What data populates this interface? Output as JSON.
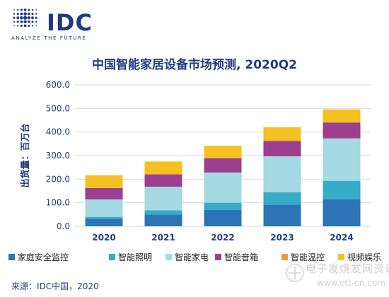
{
  "logo": {
    "text": "IDC",
    "tagline": "ANALYZE THE FUTURE"
  },
  "source": "来源：IDC中国，2020",
  "watermark": {
    "text": "电子发烧友网资讯",
    "url": "www.ett-cn.com"
  },
  "colors": {
    "brand": "#1f3b82",
    "series": [
      "#2c74b5",
      "#36acc8",
      "#a5d9e3",
      "#9b3f8e",
      "#f2983a",
      "#f5c021"
    ]
  },
  "chart_data": {
    "type": "bar",
    "stacked": true,
    "title": "中国智能家居设备市场预测, 2020Q2",
    "xlabel": "",
    "ylabel": "出货量：百万台",
    "ylim": [
      0,
      600
    ],
    "yticks": [
      "0.0",
      "100.0",
      "200.0",
      "300.0",
      "400.0",
      "500.0",
      "600.0"
    ],
    "categories": [
      "2020",
      "2021",
      "2022",
      "2023",
      "2024"
    ],
    "grid": true,
    "legend": "bottom",
    "series": [
      {
        "name": "家庭安全监控",
        "values": [
          30,
          50,
          70,
          92,
          115
        ]
      },
      {
        "name": "智能照明",
        "values": [
          10,
          18,
          30,
          52,
          78
        ]
      },
      {
        "name": "智能家电",
        "values": [
          74,
          100,
          128,
          153,
          180
        ]
      },
      {
        "name": "智能音箱",
        "values": [
          48,
          52,
          60,
          65,
          67
        ]
      },
      {
        "name": "智能温控",
        "values": [
          1,
          2,
          2,
          3,
          3
        ]
      },
      {
        "name": "视频娱乐",
        "values": [
          53,
          53,
          52,
          55,
          53
        ]
      }
    ]
  }
}
